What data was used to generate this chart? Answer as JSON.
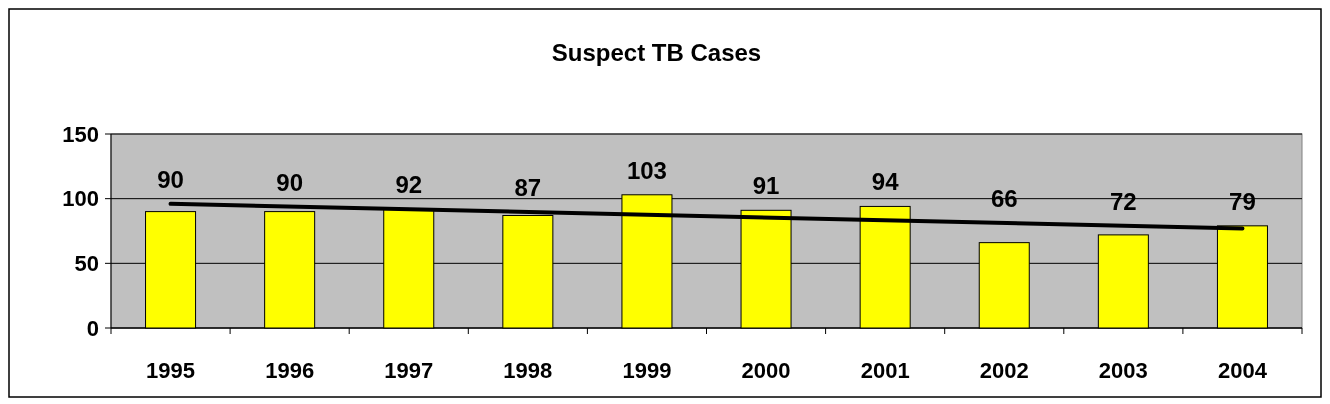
{
  "chart_data": {
    "type": "bar",
    "title": "Suspect TB Cases",
    "categories": [
      "1995",
      "1996",
      "1997",
      "1998",
      "1999",
      "2000",
      "2001",
      "2002",
      "2003",
      "2004"
    ],
    "series": [
      {
        "color": "#ffff00",
        "values": [
          90,
          90,
          92,
          87,
          103,
          91,
          94,
          66,
          72,
          79
        ],
        "value_labels": [
          "90",
          "90",
          "92",
          "87",
          "103",
          "91",
          "94",
          "66",
          "72",
          "79"
        ]
      },
      {
        "type": "line",
        "color": "#000000",
        "values": [
          96,
          null,
          null,
          null,
          null,
          null,
          null,
          null,
          null,
          77
        ]
      }
    ],
    "ylim": [
      0,
      150
    ],
    "yticks": [
      0,
      50,
      100,
      150
    ],
    "grid": "y"
  }
}
